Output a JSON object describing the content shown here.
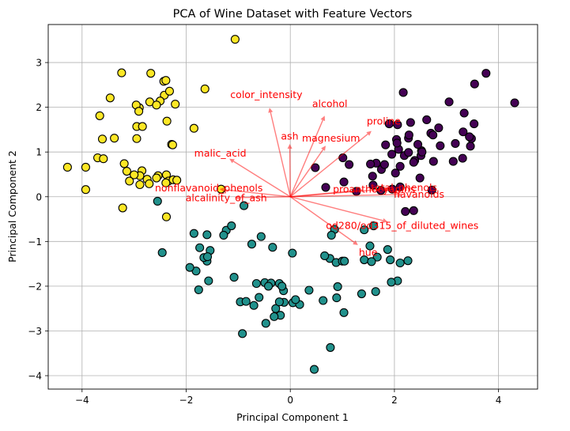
{
  "chart_data": {
    "type": "scatter",
    "title": "PCA of Wine Dataset with Feature Vectors",
    "xlabel": "Principal Component 1",
    "ylabel": "Principal Component 2",
    "xlim": [
      -4.65,
      4.75
    ],
    "ylim": [
      -4.3,
      3.85
    ],
    "xticks": [
      -4,
      -2,
      0,
      2,
      4
    ],
    "yticks": [
      -4,
      -3,
      -2,
      -1,
      0,
      1,
      2,
      3
    ],
    "grid": true,
    "colors": {
      "class_0": "#440154",
      "class_1": "#21918c",
      "class_2": "#fde725",
      "point_edge": "#000000",
      "vector": "#ff0000",
      "vector_label": "#ff0000",
      "grid": "#b0b0b0"
    },
    "series": [
      {
        "points": [
          [
            3.32,
            1.45
          ],
          [
            2.21,
            -0.33
          ],
          [
            2.52,
            1.03
          ],
          [
            3.76,
            2.76
          ],
          [
            1.01,
            0.87
          ],
          [
            3.05,
            2.12
          ],
          [
            2.45,
            1.17
          ],
          [
            2.06,
            1.61
          ],
          [
            2.51,
            0.92
          ],
          [
            2.75,
            0.79
          ],
          [
            3.48,
            1.3
          ],
          [
            1.75,
            0.61
          ],
          [
            2.11,
            0.68
          ],
          [
            3.46,
            1.13
          ],
          [
            4.31,
            2.1
          ],
          [
            2.31,
            1.66
          ],
          [
            2.17,
            2.33
          ],
          [
            1.9,
            1.63
          ],
          [
            3.54,
            2.52
          ],
          [
            2.08,
            1.06
          ],
          [
            3.13,
            0.79
          ],
          [
            1.65,
            0.75
          ],
          [
            1.54,
            0.73
          ],
          [
            1.96,
            0.17
          ],
          [
            1.58,
            0.46
          ],
          [
            1.03,
            0.33
          ],
          [
            1.59,
            0.26
          ],
          [
            2.49,
            0.42
          ],
          [
            2.72,
            0.15
          ],
          [
            2.27,
            1.31
          ],
          [
            1.81,
            0.72
          ],
          [
            3.31,
            0.86
          ],
          [
            2.28,
            1.38
          ],
          [
            2.53,
            1.0
          ],
          [
            2.04,
            1.28
          ],
          [
            1.83,
            1.16
          ],
          [
            1.74,
            0.14
          ],
          [
            2.7,
            1.42
          ],
          [
            3.17,
            1.19
          ],
          [
            2.02,
            0.53
          ],
          [
            1.95,
            0.95
          ],
          [
            2.39,
            0.81
          ],
          [
            2.88,
            1.14
          ],
          [
            2.19,
            0.92
          ],
          [
            1.13,
            0.72
          ],
          [
            2.05,
            1.2
          ],
          [
            2.11,
            0.22
          ],
          [
            2.37,
            -0.31
          ],
          [
            2.62,
            1.72
          ],
          [
            2.85,
            1.54
          ],
          [
            3.34,
            1.87
          ],
          [
            2.27,
            0.99
          ],
          [
            3.53,
            1.63
          ],
          [
            3.44,
            1.34
          ],
          [
            2.74,
            1.38
          ],
          [
            0.68,
            0.21
          ],
          [
            1.27,
            0.12
          ],
          [
            0.48,
            0.65
          ],
          [
            2.37,
            0.77
          ]
        ]
      },
      {
        "points": [
          [
            -0.47,
            -2.83
          ],
          [
            -0.92,
            -3.06
          ],
          [
            0.46,
            -3.86
          ],
          [
            0.77,
            -3.37
          ],
          [
            -0.19,
            -2.65
          ],
          [
            -0.31,
            -2.68
          ],
          [
            0.05,
            -2.37
          ],
          [
            -0.28,
            -2.5
          ],
          [
            0.18,
            -2.41
          ],
          [
            -0.7,
            -2.43
          ],
          [
            -0.6,
            -2.25
          ],
          [
            -0.12,
            -2.36
          ],
          [
            -0.13,
            -2.1
          ],
          [
            1.03,
            -2.59
          ],
          [
            -0.21,
            -2.35
          ],
          [
            0.63,
            -2.32
          ],
          [
            1.37,
            -2.17
          ],
          [
            0.89,
            -2.26
          ],
          [
            2.06,
            -1.88
          ],
          [
            1.94,
            -1.91
          ],
          [
            -0.49,
            -1.92
          ],
          [
            -0.65,
            -1.94
          ],
          [
            -0.37,
            -1.93
          ],
          [
            -0.21,
            -1.94
          ],
          [
            -1.57,
            -1.88
          ],
          [
            -1.08,
            -1.8
          ],
          [
            -1.76,
            -2.08
          ],
          [
            -1.81,
            -1.66
          ],
          [
            -1.6,
            -1.44
          ],
          [
            -1.66,
            -1.36
          ],
          [
            -1.74,
            -1.14
          ],
          [
            -1.93,
            -1.58
          ],
          [
            -1.54,
            -1.2
          ],
          [
            -1.23,
            -0.75
          ],
          [
            -1.13,
            -0.65
          ],
          [
            -1.28,
            -0.86
          ],
          [
            -1.59,
            -1.34
          ],
          [
            -1.6,
            -0.85
          ],
          [
            -1.85,
            -0.82
          ],
          [
            -0.74,
            -1.06
          ],
          [
            -0.89,
            -0.2
          ],
          [
            -0.56,
            -0.89
          ],
          [
            -0.34,
            -1.13
          ],
          [
            0.04,
            -1.26
          ],
          [
            0.85,
            -0.73
          ],
          [
            0.76,
            -1.38
          ],
          [
            0.88,
            -1.47
          ],
          [
            1.0,
            -1.44
          ],
          [
            1.04,
            -1.44
          ],
          [
            1.42,
            -0.74
          ],
          [
            1.6,
            -0.65
          ],
          [
            1.53,
            -1.1
          ],
          [
            1.67,
            -1.35
          ],
          [
            1.42,
            -1.41
          ],
          [
            1.56,
            -1.45
          ],
          [
            1.92,
            -1.41
          ],
          [
            2.26,
            -1.43
          ],
          [
            0.66,
            -1.32
          ],
          [
            0.79,
            -0.86
          ],
          [
            1.87,
            -1.18
          ],
          [
            -2.55,
            -0.1
          ],
          [
            -2.46,
            -1.25
          ],
          [
            -0.16,
            -2.0
          ],
          [
            0.91,
            -2.01
          ],
          [
            1.64,
            -2.12
          ],
          [
            2.11,
            -1.48
          ],
          [
            -0.96,
            -2.35
          ],
          [
            -0.42,
            -2.0
          ],
          [
            0.1,
            -2.3
          ],
          [
            0.36,
            -2.09
          ],
          [
            -0.85,
            -2.34
          ]
        ]
      },
      {
        "points": [
          [
            -1.06,
            3.52
          ],
          [
            -1.64,
            2.41
          ],
          [
            -3.24,
            2.77
          ],
          [
            -2.68,
            2.76
          ],
          [
            -2.43,
            2.58
          ],
          [
            -2.42,
            2.27
          ],
          [
            -2.5,
            2.14
          ],
          [
            -2.7,
            2.12
          ],
          [
            -2.21,
            2.07
          ],
          [
            -3.66,
            1.81
          ],
          [
            -2.9,
            1.99
          ],
          [
            -2.32,
            2.36
          ],
          [
            -2.39,
            2.6
          ],
          [
            -2.96,
            2.05
          ],
          [
            -2.57,
            2.05
          ],
          [
            -3.46,
            2.21
          ],
          [
            -2.91,
            1.91
          ],
          [
            -2.37,
            1.69
          ],
          [
            -2.95,
            1.57
          ],
          [
            -2.84,
            1.57
          ],
          [
            -1.85,
            1.53
          ],
          [
            -3.38,
            1.31
          ],
          [
            -2.95,
            1.3
          ],
          [
            -3.61,
            1.29
          ],
          [
            -2.28,
            1.17
          ],
          [
            -2.26,
            1.16
          ],
          [
            -3.7,
            0.87
          ],
          [
            -3.59,
            0.85
          ],
          [
            -3.19,
            0.74
          ],
          [
            -3.14,
            0.57
          ],
          [
            -2.85,
            0.58
          ],
          [
            -2.54,
            0.47
          ],
          [
            -2.38,
            0.49
          ],
          [
            -4.28,
            0.66
          ],
          [
            -3.93,
            0.66
          ],
          [
            -2.89,
            0.47
          ],
          [
            -3.0,
            0.49
          ],
          [
            -3.09,
            0.35
          ],
          [
            -2.75,
            0.39
          ],
          [
            -2.34,
            0.35
          ],
          [
            -2.25,
            0.38
          ],
          [
            -2.39,
            0.31
          ],
          [
            -2.89,
            0.27
          ],
          [
            -2.71,
            0.29
          ],
          [
            -1.33,
            0.17
          ],
          [
            -3.93,
            0.16
          ],
          [
            -3.22,
            -0.25
          ],
          [
            -2.38,
            -0.45
          ],
          [
            -2.57,
            0.42
          ],
          [
            -2.18,
            0.37
          ]
        ]
      }
    ],
    "vectors": [
      {
        "label": "alcohol",
        "dx": 0.66,
        "dy": 1.81
      },
      {
        "label": "malic_acid",
        "dx": -1.17,
        "dy": 0.85
      },
      {
        "label": "ash",
        "dx": -0.01,
        "dy": 1.18
      },
      {
        "label": "alcalinity_of_ash",
        "dx": -1.07,
        "dy": -0.02
      },
      {
        "label": "magnesium",
        "dx": 0.68,
        "dy": 1.14
      },
      {
        "label": "total_phenols",
        "dx": 1.9,
        "dy": 0.18
      },
      {
        "label": "flavanoids",
        "dx": 2.15,
        "dy": 0.05
      },
      {
        "label": "nonflavanoid_phenols",
        "dx": -1.36,
        "dy": 0.17
      },
      {
        "label": "proanthocyanins",
        "dx": 1.4,
        "dy": 0.15
      },
      {
        "label": "color_intensity",
        "dx": -0.4,
        "dy": 1.99
      },
      {
        "label": "hue",
        "dx": 1.3,
        "dy": -1.08
      },
      {
        "label": "od280/od315_of_diluted_wines",
        "dx": 1.87,
        "dy": -0.56
      },
      {
        "label": "proline",
        "dx": 1.56,
        "dy": 1.47
      }
    ]
  }
}
